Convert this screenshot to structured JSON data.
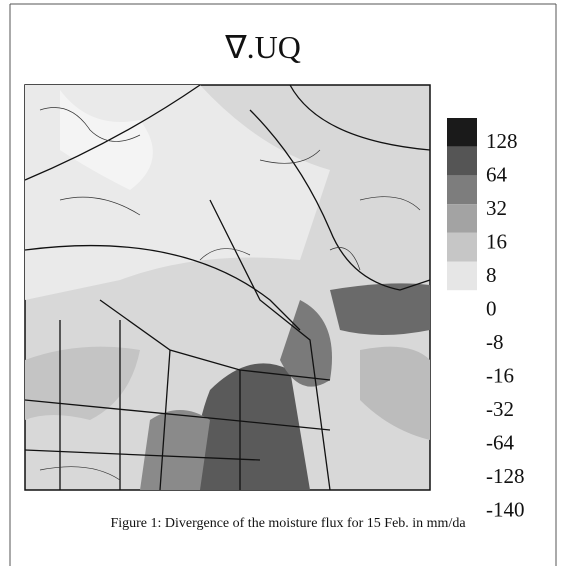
{
  "figure": {
    "title": "∇.UQ",
    "legend": {
      "levels": [
        128,
        64,
        32,
        16,
        8,
        0,
        -8,
        -16,
        -32,
        -64,
        -128,
        -140
      ],
      "colors": [
        "#1a1a1a",
        "#555555",
        "#7d7d7d",
        "#a3a3a3",
        "#c6c6c6",
        "#e6e6e6"
      ]
    },
    "caption": "Figure 1: Divergence of the  moisture flux for 15 Feb. in mm/da"
  }
}
